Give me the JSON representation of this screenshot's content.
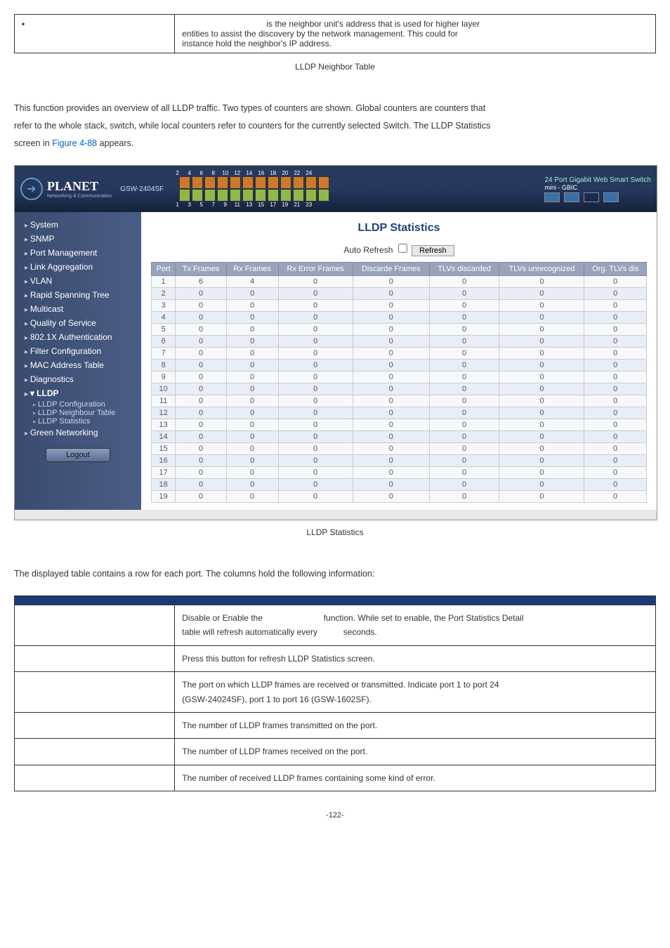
{
  "topTable": {
    "col2_line1_prefix": "is the neighbor unit's address that is used for higher layer",
    "col2_line2": "entities to assist the discovery by the network management. This could for",
    "col2_line3": "instance hold the neighbor's IP address."
  },
  "caption1": "LLDP Neighbor Table",
  "paragraph": {
    "line1": "This function provides an overview of all LLDP traffic. Two types of counters are shown. Global counters are counters that",
    "line2": "refer to the whole stack, switch, while local counters refer to counters for the currently selected Switch. The LLDP Statistics",
    "line3_a": "screen in ",
    "line3_link": "Figure 4-88",
    "line3_b": " appears."
  },
  "header": {
    "model": "GSW-2404SF",
    "logo": "PLANET",
    "logoSub": "Networking & Communication",
    "rightTitle": "24 Port Gigabit Web Smart Switch",
    "mini": "mini - GBIC",
    "portTop": [
      "2",
      "4",
      "6",
      "8",
      "10",
      "12",
      "14",
      "16",
      "18",
      "20",
      "22",
      "24"
    ],
    "portBot": [
      "1",
      "3",
      "5",
      "7",
      "9",
      "11",
      "13",
      "15",
      "17",
      "19",
      "21",
      "23"
    ]
  },
  "sidebar": {
    "items": [
      {
        "label": "System"
      },
      {
        "label": "SNMP"
      },
      {
        "label": "Port Management"
      },
      {
        "label": "Link Aggregation"
      },
      {
        "label": "VLAN"
      },
      {
        "label": "Rapid Spanning Tree"
      },
      {
        "label": "Multicast"
      },
      {
        "label": "Quality of Service"
      },
      {
        "label": "802.1X Authentication"
      },
      {
        "label": "Filter Configuration"
      },
      {
        "label": "MAC Address Table"
      },
      {
        "label": "Diagnostics"
      },
      {
        "label": "LLDP"
      }
    ],
    "subs": [
      {
        "label": "LLDP Configuration"
      },
      {
        "label": "LLDP Neighbour Table"
      },
      {
        "label": "LLDP Statistics"
      }
    ],
    "last": {
      "label": "Green Networking"
    },
    "logout": "Logout"
  },
  "content": {
    "title": "LLDP Statistics",
    "autoRefresh": "Auto Refresh",
    "refreshBtn": "Refresh",
    "columns": [
      "Port",
      "Tx Frames",
      "Rx Frames",
      "Rx Error Frames",
      "Discarde Frames",
      "TLVs discarded",
      "TLVs unrecognized",
      "Org. TLVs dis"
    ],
    "rows": [
      [
        1,
        6,
        4,
        0,
        0,
        0,
        0,
        0
      ],
      [
        2,
        0,
        0,
        0,
        0,
        0,
        0,
        0
      ],
      [
        3,
        0,
        0,
        0,
        0,
        0,
        0,
        0
      ],
      [
        4,
        0,
        0,
        0,
        0,
        0,
        0,
        0
      ],
      [
        5,
        0,
        0,
        0,
        0,
        0,
        0,
        0
      ],
      [
        6,
        0,
        0,
        0,
        0,
        0,
        0,
        0
      ],
      [
        7,
        0,
        0,
        0,
        0,
        0,
        0,
        0
      ],
      [
        8,
        0,
        0,
        0,
        0,
        0,
        0,
        0
      ],
      [
        9,
        0,
        0,
        0,
        0,
        0,
        0,
        0
      ],
      [
        10,
        0,
        0,
        0,
        0,
        0,
        0,
        0
      ],
      [
        11,
        0,
        0,
        0,
        0,
        0,
        0,
        0
      ],
      [
        12,
        0,
        0,
        0,
        0,
        0,
        0,
        0
      ],
      [
        13,
        0,
        0,
        0,
        0,
        0,
        0,
        0
      ],
      [
        14,
        0,
        0,
        0,
        0,
        0,
        0,
        0
      ],
      [
        15,
        0,
        0,
        0,
        0,
        0,
        0,
        0
      ],
      [
        16,
        0,
        0,
        0,
        0,
        0,
        0,
        0
      ],
      [
        17,
        0,
        0,
        0,
        0,
        0,
        0,
        0
      ],
      [
        18,
        0,
        0,
        0,
        0,
        0,
        0,
        0
      ],
      [
        19,
        0,
        0,
        0,
        0,
        0,
        0,
        0
      ]
    ]
  },
  "caption2": "LLDP Statistics",
  "descIntro": "The displayed table contains a row for each port. The columns hold the following information:",
  "descTable": {
    "rows": [
      {
        "l": "",
        "r_a": "Disable or Enable the",
        "r_b": "function. While set to enable, the Port Statistics Detail",
        "r_c": "table will refresh automatically every",
        "r_d": "seconds."
      },
      {
        "l": "",
        "r": "Press this button for refresh LLDP Statistics screen."
      },
      {
        "l": "",
        "r_a": "The port on which LLDP frames are received or transmitted. Indicate port 1 to port 24",
        "r_b": "(GSW-24024SF), port 1 to port 16 (GSW-1602SF)."
      },
      {
        "l": "",
        "r": "The number of LLDP frames transmitted on the port."
      },
      {
        "l": "",
        "r": "The number of LLDP frames received on the port."
      },
      {
        "l": "",
        "r": "The number of received LLDP frames containing some kind of error."
      }
    ]
  },
  "pageNum": "-122-"
}
